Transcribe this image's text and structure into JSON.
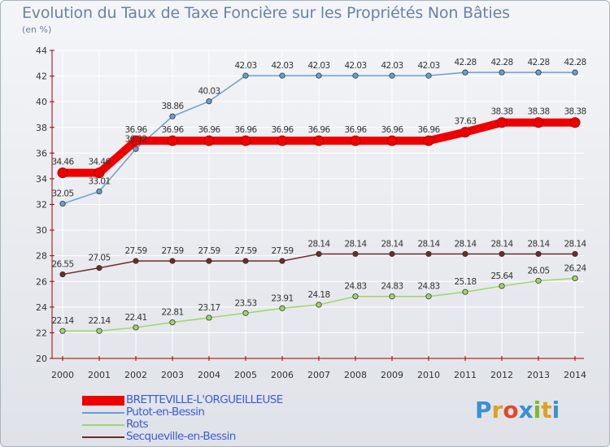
{
  "title": "Evolution du Taux de Taxe Foncière sur les Propriétés Non Bâties",
  "unit": "(en %)",
  "logo": {
    "text": "Proxiti",
    "colors": [
      "#3a8fd6",
      "#e0a020",
      "#e04a2a",
      "#3a8fd6",
      "#7cb82f",
      "#e0a020",
      "#3a8fd6"
    ]
  },
  "chart_data": {
    "type": "line",
    "title": "Evolution du Taux de Taxe Foncière sur les Propriétés Non Bâties",
    "ylabel": "(en %)",
    "ylim": [
      20,
      44
    ],
    "yticks": [
      "20",
      "22",
      "24",
      "26",
      "28",
      "30",
      "32",
      "34",
      "36",
      "38",
      "40",
      "42",
      "44"
    ],
    "categories": [
      "2000",
      "2001",
      "2002",
      "2003",
      "2004",
      "2005",
      "2006",
      "2007",
      "2008",
      "2009",
      "2010",
      "2011",
      "2012",
      "2013",
      "2014"
    ],
    "series": [
      {
        "name": "BRETTEVILLE-L'ORGUEILLEUSE",
        "color": "#ee0000",
        "bold": true,
        "values": [
          34.46,
          34.46,
          36.96,
          36.96,
          36.96,
          36.96,
          36.96,
          36.96,
          36.96,
          36.96,
          36.96,
          37.63,
          38.38,
          38.38,
          38.38
        ],
        "labels": [
          "34.46",
          "34.46",
          "36.96",
          "36.96",
          "36.96",
          "36.96",
          "36.96",
          "36.96",
          "36.96",
          "36.96",
          "36.96",
          "37.63",
          "38.38",
          "38.38",
          "38.38"
        ]
      },
      {
        "name": "Putot-en-Bessin",
        "color": "#6a9fd0",
        "bold": false,
        "values": [
          32.05,
          33.01,
          36.32,
          38.86,
          40.03,
          42.03,
          42.03,
          42.03,
          42.03,
          42.03,
          42.03,
          42.28,
          42.28,
          42.28,
          42.28
        ],
        "labels": [
          "32.05",
          "33.01",
          "36.32",
          "38.86",
          "40.03",
          "42.03",
          "42.03",
          "42.03",
          "42.03",
          "42.03",
          "42.03",
          "42.28",
          "42.28",
          "42.28",
          "42.28"
        ]
      },
      {
        "name": "Rots",
        "color": "#9ed66a",
        "bold": false,
        "values": [
          22.14,
          22.14,
          22.41,
          22.81,
          23.17,
          23.53,
          23.91,
          24.18,
          24.83,
          24.83,
          24.83,
          25.18,
          25.64,
          26.05,
          26.24
        ],
        "labels": [
          "22.14",
          "22.14",
          "22.41",
          "22.81",
          "23.17",
          "23.53",
          "23.91",
          "24.18",
          "24.83",
          "24.83",
          "24.83",
          "25.18",
          "25.64",
          "26.05",
          "26.24"
        ]
      },
      {
        "name": "Secqueville-en-Bessin",
        "color": "#6e2a2a",
        "bold": false,
        "values": [
          26.55,
          27.05,
          27.59,
          27.59,
          27.59,
          27.59,
          27.59,
          28.14,
          28.14,
          28.14,
          28.14,
          28.14,
          28.14,
          28.14,
          28.14
        ],
        "labels": [
          "26.55",
          "27.05",
          "27.59",
          "27.59",
          "27.59",
          "27.59",
          "27.59",
          "28.14",
          "28.14",
          "28.14",
          "28.14",
          "28.14",
          "28.14",
          "28.14",
          "28.14"
        ]
      }
    ],
    "legend_position": "bottom-left"
  }
}
